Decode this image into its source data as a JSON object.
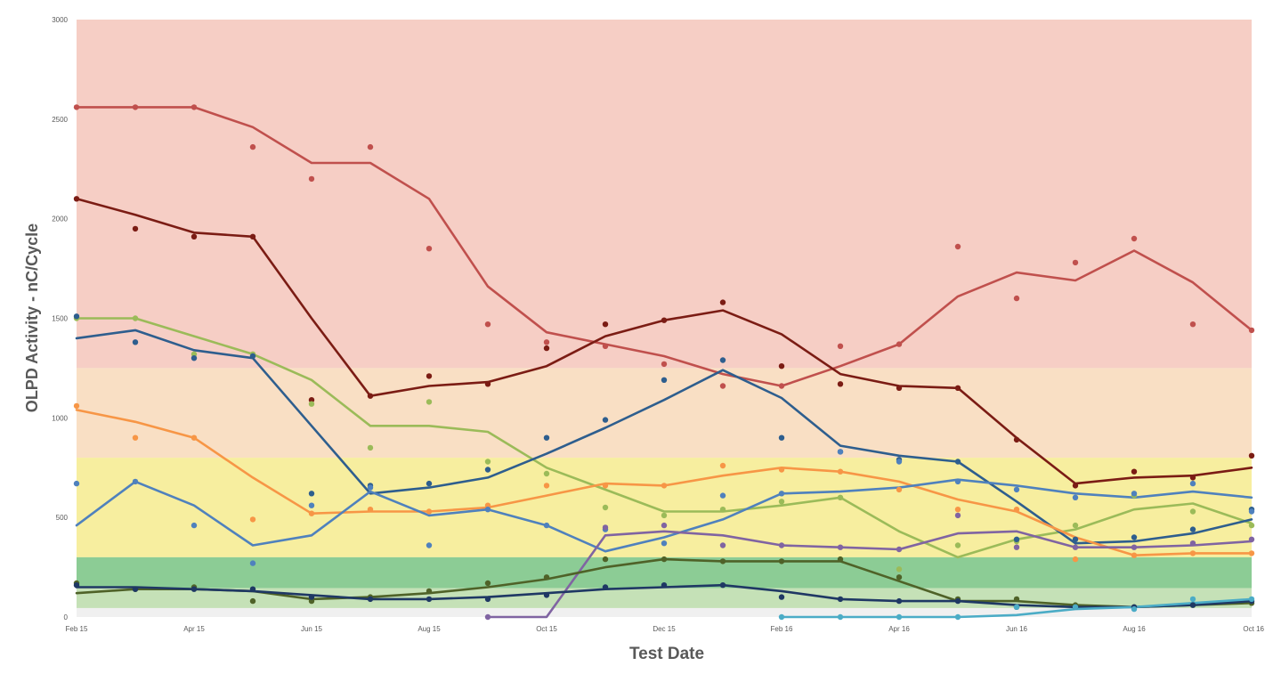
{
  "chart_data": {
    "type": "line",
    "title": "",
    "xlabel": "Test Date",
    "ylabel": "OLPD Activity - nC/Cycle",
    "ylim": [
      0,
      3000
    ],
    "y_ticks": [
      "0",
      "500",
      "1000",
      "1500",
      "2000",
      "2500",
      "3000"
    ],
    "y_tick_values": [
      0,
      500,
      1000,
      1500,
      2000,
      2500,
      3000
    ],
    "x": [
      "Feb 15",
      "Mar 15",
      "Apr 15",
      "May 15",
      "Jun 15",
      "Jul 15",
      "Aug 15",
      "Sep 15",
      "Oct 15",
      "Nov 15",
      "Dec 15",
      "Jan 16",
      "Feb 16",
      "Mar 16",
      "Apr 16",
      "May 16",
      "Jun 16",
      "Jul 16",
      "Aug 16",
      "Sep 16",
      "Oct 16"
    ],
    "x_ticks": [
      "Feb 15",
      "Apr 15",
      "Jun 15",
      "Aug 15",
      "Oct 15",
      "Dec 15",
      "Feb 16",
      "Apr 16",
      "Jun 16",
      "Aug 16",
      "Oct 16"
    ],
    "x_tick_index": [
      0,
      2,
      4,
      6,
      8,
      10,
      12,
      14,
      16,
      18,
      20
    ],
    "grid": false,
    "bands": [
      {
        "from": 1250,
        "to": 3000,
        "color": "#f6cec5"
      },
      {
        "from": 800,
        "to": 1250,
        "color": "#f9dfc4"
      },
      {
        "from": 300,
        "to": 800,
        "color": "#f7ee9f"
      },
      {
        "from": 145,
        "to": 300,
        "color": "#8ccc95"
      },
      {
        "from": 45,
        "to": 145,
        "color": "#c5e1b7"
      },
      {
        "from": 0,
        "to": 45,
        "color": "#f0f0f0"
      }
    ],
    "series": [
      {
        "color": "#c0504d",
        "points": [
          2560,
          2560,
          2560,
          2360,
          2200,
          2360,
          1850,
          1470,
          1380,
          1360,
          1270,
          1160,
          1160,
          1360,
          1370,
          1860,
          1600,
          1780,
          1900,
          1470,
          1440
        ],
        "trend": [
          2560,
          2560,
          2560,
          2460,
          2280,
          2280,
          2100,
          1660,
          1430,
          1370,
          1310,
          1220,
          1160,
          1260,
          1370,
          1610,
          1730,
          1690,
          1840,
          1680,
          1440
        ]
      },
      {
        "color": "#7b1c14",
        "points": [
          2100,
          1950,
          1910,
          1910,
          1090,
          1110,
          1210,
          1170,
          1350,
          1470,
          1490,
          1580,
          1260,
          1170,
          1150,
          1150,
          890,
          660,
          730,
          700,
          810
        ],
        "trend": [
          2100,
          2020,
          1930,
          1910,
          1500,
          1110,
          1160,
          1180,
          1260,
          1410,
          1490,
          1540,
          1420,
          1220,
          1160,
          1150,
          900,
          670,
          700,
          710,
          750
        ]
      },
      {
        "color": "#9bbb59",
        "points": [
          1500,
          1500,
          1320,
          1320,
          1070,
          850,
          1080,
          780,
          720,
          550,
          510,
          540,
          580,
          600,
          240,
          360,
          380,
          460,
          610,
          530,
          460
        ],
        "trend": [
          1500,
          1500,
          1410,
          1320,
          1190,
          960,
          960,
          930,
          750,
          640,
          530,
          530,
          560,
          600,
          430,
          300,
          390,
          440,
          540,
          570,
          470
        ]
      },
      {
        "color": "#2e5e8e",
        "points": [
          1510,
          1380,
          1300,
          1310,
          620,
          660,
          670,
          740,
          900,
          990,
          1190,
          1290,
          900,
          830,
          790,
          780,
          390,
          390,
          400,
          440,
          540
        ],
        "trend": [
          1400,
          1440,
          1340,
          1300,
          960,
          620,
          650,
          700,
          820,
          950,
          1090,
          1240,
          1100,
          860,
          810,
          780,
          580,
          370,
          380,
          420,
          490
        ]
      },
      {
        "color": "#f79646",
        "points": [
          1060,
          900,
          900,
          490,
          520,
          540,
          530,
          560,
          660,
          660,
          660,
          760,
          740,
          730,
          640,
          540,
          540,
          290,
          310,
          320,
          320
        ],
        "trend": [
          1040,
          980,
          900,
          700,
          520,
          530,
          530,
          550,
          610,
          670,
          660,
          710,
          750,
          730,
          680,
          590,
          530,
          400,
          310,
          320,
          320
        ]
      },
      {
        "color": "#4f81bd",
        "points": [
          670,
          680,
          460,
          270,
          560,
          650,
          360,
          540,
          460,
          440,
          370,
          610,
          620,
          830,
          780,
          680,
          640,
          600,
          620,
          670,
          530
        ],
        "trend": [
          460,
          680,
          560,
          360,
          410,
          630,
          510,
          540,
          460,
          330,
          400,
          490,
          620,
          630,
          650,
          690,
          660,
          620,
          600,
          630,
          600
        ]
      },
      {
        "color": "#8064a2",
        "points": [
          null,
          null,
          null,
          null,
          null,
          null,
          null,
          0,
          null,
          450,
          460,
          360,
          360,
          350,
          340,
          510,
          350,
          350,
          350,
          370,
          390
        ],
        "trend": [
          null,
          null,
          null,
          null,
          null,
          null,
          null,
          0,
          0,
          410,
          430,
          410,
          360,
          350,
          340,
          420,
          430,
          350,
          350,
          360,
          380
        ]
      },
      {
        "color": "#4f6228",
        "points": [
          170,
          140,
          150,
          80,
          80,
          100,
          130,
          170,
          200,
          290,
          290,
          280,
          280,
          290,
          200,
          90,
          90,
          60,
          50,
          60,
          70
        ],
        "trend": [
          120,
          140,
          140,
          130,
          90,
          100,
          120,
          150,
          190,
          250,
          290,
          280,
          280,
          280,
          180,
          80,
          80,
          60,
          50,
          60,
          70
        ]
      },
      {
        "color": "#1f3864",
        "points": [
          160,
          140,
          140,
          140,
          100,
          90,
          90,
          90,
          110,
          150,
          160,
          160,
          100,
          90,
          80,
          80,
          50,
          50,
          50,
          60,
          80
        ],
        "trend": [
          150,
          150,
          140,
          130,
          110,
          90,
          90,
          100,
          120,
          140,
          150,
          160,
          130,
          90,
          80,
          80,
          60,
          50,
          50,
          60,
          80
        ]
      },
      {
        "color": "#4bacc6",
        "points": [
          null,
          null,
          null,
          null,
          null,
          null,
          null,
          null,
          null,
          null,
          null,
          null,
          0,
          0,
          0,
          0,
          50,
          50,
          40,
          90,
          90
        ],
        "trend": [
          null,
          null,
          null,
          null,
          null,
          null,
          null,
          null,
          null,
          null,
          null,
          null,
          0,
          0,
          0,
          0,
          10,
          40,
          50,
          70,
          90
        ]
      }
    ]
  }
}
